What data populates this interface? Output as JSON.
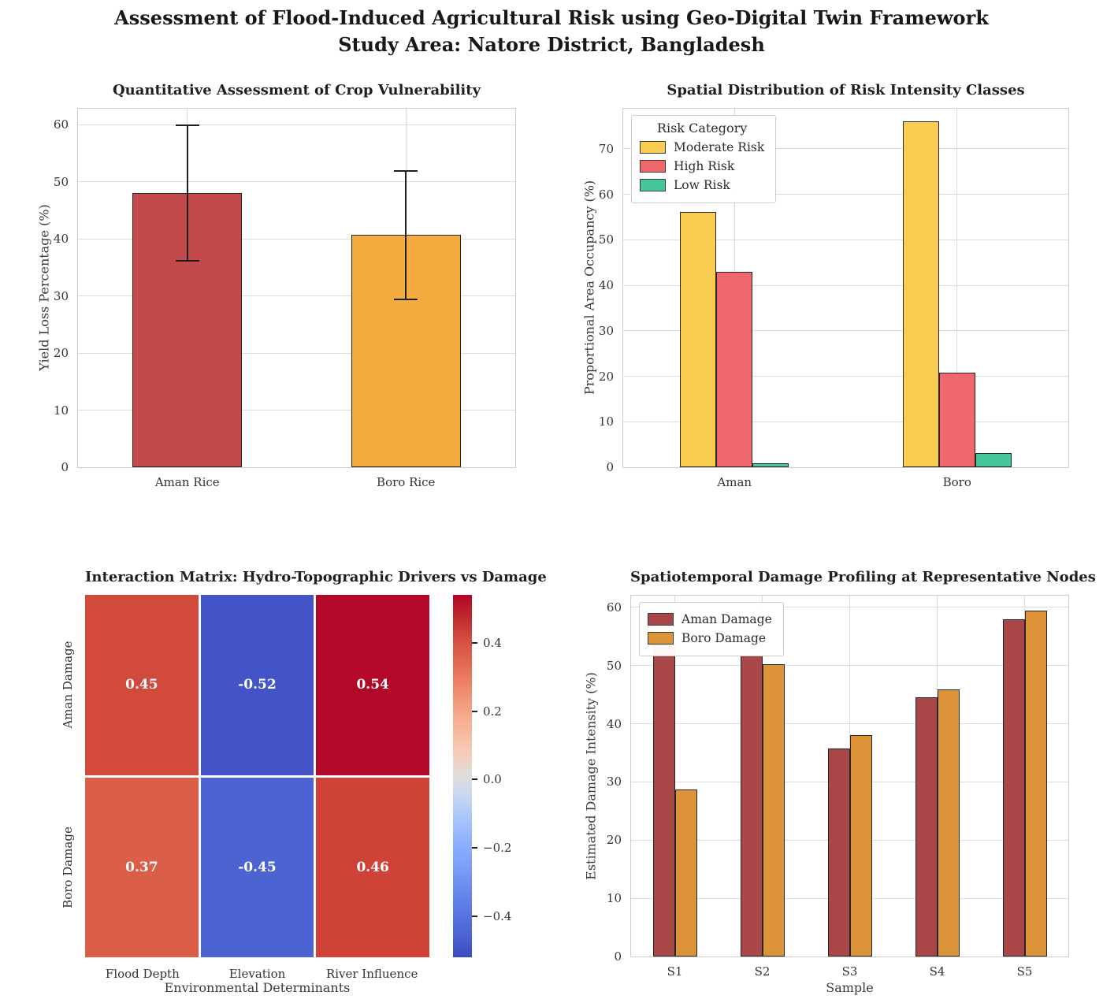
{
  "figure": {
    "title_line1": "Assessment of Flood-Induced Agricultural Risk using Geo-Digital Twin Framework",
    "title_line2": "Study Area: Natore District, Bangladesh"
  },
  "chart_data": [
    {
      "id": "crop-vulnerability",
      "type": "bar",
      "title": "Quantitative Assessment of Crop Vulnerability",
      "ylabel": "Yield Loss Percentage (%)",
      "categories": [
        "Aman Rice",
        "Boro Rice"
      ],
      "values": [
        48.0,
        40.7
      ],
      "error_low": [
        36.0,
        29.3
      ],
      "error_high": [
        60.0,
        52.0
      ],
      "bar_colors": [
        "#c4494a",
        "#f5ac3e"
      ],
      "ylim": [
        0,
        62.8
      ],
      "yticks": [
        0,
        10,
        20,
        30,
        40,
        50,
        60
      ],
      "grid": true,
      "legend_position": "none"
    },
    {
      "id": "risk-distribution",
      "type": "bar",
      "title": "Spatial Distribution of Risk Intensity Classes",
      "ylabel": "Proportional Area Occupancy (%)",
      "categories": [
        "Aman",
        "Boro"
      ],
      "legend_title": "Risk Category",
      "legend_position": "upper-left",
      "series": [
        {
          "name": "Moderate Risk",
          "color": "#f9cc52",
          "values": [
            56.2,
            76.0
          ]
        },
        {
          "name": "High Risk",
          "color": "#f0686b",
          "values": [
            43.0,
            20.7
          ]
        },
        {
          "name": "Low Risk",
          "color": "#45c79a",
          "values": [
            0.8,
            3.2
          ]
        }
      ],
      "ylim": [
        0,
        78.8
      ],
      "yticks": [
        0,
        10,
        20,
        30,
        40,
        50,
        60,
        70
      ],
      "grid": true
    },
    {
      "id": "interaction-matrix",
      "type": "heatmap",
      "title": "Interaction Matrix: Hydro-Topographic Drivers vs Damage",
      "xlabel": "Environmental Determinants",
      "rows": [
        "Aman Damage",
        "Boro Damage"
      ],
      "columns": [
        "Flood Depth",
        "Elevation",
        "River Influence"
      ],
      "values": [
        [
          0.45,
          -0.52,
          0.54
        ],
        [
          0.37,
          -0.45,
          0.46
        ]
      ],
      "cell_colors": [
        [
          "#d14a3c",
          "#4254c8",
          "#b30828"
        ],
        [
          "#db5f48",
          "#4d63d2",
          "#cf4238"
        ]
      ],
      "colorbar": {
        "vmin": -0.52,
        "vmax": 0.54,
        "tick_values": [
          0.4,
          0.2,
          0.0,
          -0.2,
          -0.4
        ],
        "tick_labels": [
          "0.4",
          "0.2",
          "0.0",
          "−0.2",
          "−0.4"
        ]
      }
    },
    {
      "id": "damage-profiling",
      "type": "bar",
      "title": "Spatiotemporal Damage Profiling at Representative Nodes",
      "ylabel": "Estimated Damage Intensity (%)",
      "xlabel": "Sample",
      "categories": [
        "S1",
        "S2",
        "S3",
        "S4",
        "S5"
      ],
      "legend_position": "upper-left",
      "series": [
        {
          "name": "Aman Damage",
          "color": "#a84648",
          "values": [
            53.8,
            51.7,
            35.8,
            44.6,
            58.0
          ]
        },
        {
          "name": "Boro Damage",
          "color": "#dd9338",
          "values": [
            28.7,
            50.2,
            38.1,
            45.9,
            59.4
          ]
        }
      ],
      "ylim": [
        0,
        62.0
      ],
      "yticks": [
        0,
        10,
        20,
        30,
        40,
        50,
        60
      ],
      "grid": true
    }
  ]
}
